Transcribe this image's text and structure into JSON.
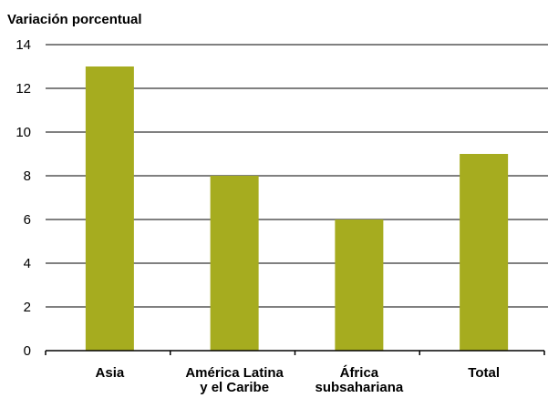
{
  "chart_data": {
    "type": "bar",
    "title": "",
    "xlabel": "",
    "ylabel": "Variación porcentual",
    "categories": [
      [
        "Asia"
      ],
      [
        "América Latina",
        "y el Caribe"
      ],
      [
        "África",
        "subsahariana"
      ],
      [
        "Total"
      ]
    ],
    "values": [
      13,
      8,
      6,
      9
    ],
    "ylim": [
      0,
      14
    ],
    "yticks": [
      0,
      2,
      4,
      6,
      8,
      10,
      12,
      14
    ],
    "grid": true,
    "legend": "none",
    "colors": {
      "bar": "#a6ac1f",
      "grid": "#000000",
      "text": "#000000"
    }
  }
}
